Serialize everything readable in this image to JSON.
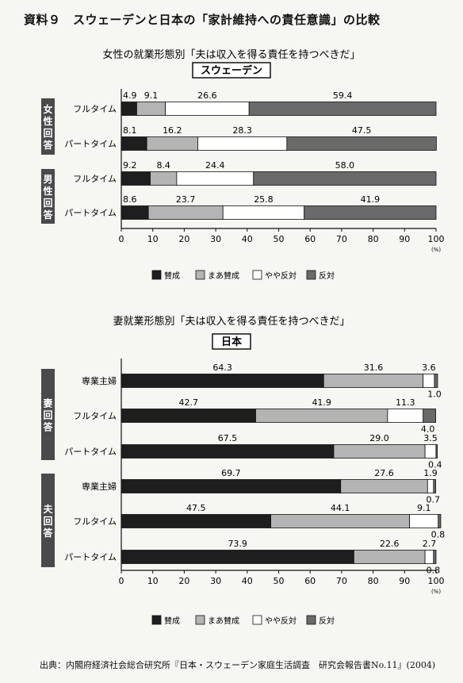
{
  "page": {
    "title": "資料９　スウェーデンと日本の「家計維持への責任意識」の比較",
    "source": "出典：内閣府経済社会総合研究所『日本・スウェーデン家庭生活調査　研究会報告書No.11』(2004)"
  },
  "colors": {
    "agree": "#1e1e1e",
    "somewhat_agree": "#b4b4b4",
    "somewhat_disagree": "#ffffff",
    "disagree": "#6a6a6a"
  },
  "chart_data": [
    {
      "type": "bar",
      "orientation": "horizontal",
      "stacked": true,
      "title": "女性の就業形態別「夫は収入を得る責任を持つべきだ」",
      "subtitle": "スウェーデン",
      "groups": [
        {
          "label": "女性回答",
          "categories": [
            "フルタイム",
            "パートタイム"
          ]
        },
        {
          "label": "男性回答",
          "categories": [
            "フルタイム",
            "パートタイム"
          ]
        }
      ],
      "series": [
        {
          "name": "賛成",
          "values": [
            4.9,
            8.1,
            9.2,
            8.6
          ]
        },
        {
          "name": "まあ賛成",
          "values": [
            9.1,
            16.2,
            8.4,
            23.7
          ]
        },
        {
          "name": "やや反対",
          "values": [
            26.6,
            28.3,
            24.4,
            25.8
          ]
        },
        {
          "name": "反対",
          "values": [
            59.4,
            47.5,
            58.0,
            41.9
          ]
        }
      ],
      "xlim": [
        0,
        100
      ],
      "xticks": [
        "0",
        "10",
        "20",
        "30",
        "40",
        "50",
        "60",
        "70",
        "80",
        "90",
        "100"
      ],
      "unit": "(%)",
      "legend_position": "bottom",
      "grid": false
    },
    {
      "type": "bar",
      "orientation": "horizontal",
      "stacked": true,
      "title": "妻就業形態別「夫は収入を得る責任を持つべきだ」",
      "subtitle": "日本",
      "groups": [
        {
          "label": "妻回答",
          "categories": [
            "専業主婦",
            "フルタイム",
            "パートタイム"
          ]
        },
        {
          "label": "夫回答",
          "categories": [
            "専業主婦",
            "フルタイム",
            "パートタイム"
          ]
        }
      ],
      "series": [
        {
          "name": "賛成",
          "values": [
            64.3,
            42.7,
            67.5,
            69.7,
            47.5,
            73.9
          ]
        },
        {
          "name": "まあ賛成",
          "values": [
            31.6,
            41.9,
            29.0,
            27.6,
            44.1,
            22.6
          ]
        },
        {
          "name": "やや反対",
          "values": [
            3.6,
            11.3,
            3.5,
            1.9,
            9.1,
            2.7
          ]
        },
        {
          "name": "反対",
          "values": [
            1.0,
            4.0,
            0.4,
            0.7,
            0.8,
            0.8
          ]
        }
      ],
      "xlim": [
        0,
        100
      ],
      "xticks": [
        "0",
        "10",
        "20",
        "30",
        "40",
        "50",
        "60",
        "70",
        "80",
        "90",
        "100"
      ],
      "unit": "(%)",
      "legend_position": "bottom",
      "grid": false
    }
  ]
}
